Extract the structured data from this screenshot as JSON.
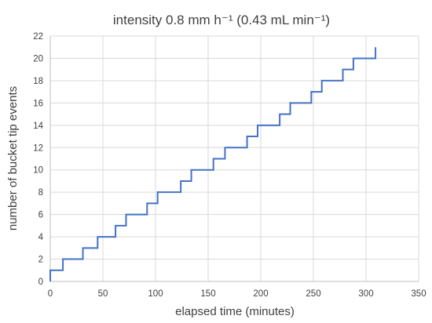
{
  "chart_data": {
    "type": "line",
    "title": "intensity 0.8 mm h⁻¹ (0.43 mL min⁻¹)",
    "xlabel": "elapsed time (minutes)",
    "ylabel": "number of bucket tip events",
    "xlim": [
      0,
      350
    ],
    "ylim": [
      0,
      22
    ],
    "xticks": [
      "0",
      "50",
      "100",
      "150",
      "200",
      "250",
      "300",
      "350"
    ],
    "yticks": [
      "0",
      "2",
      "4",
      "6",
      "8",
      "10",
      "12",
      "14",
      "16",
      "18",
      "20",
      "22"
    ],
    "grid": true,
    "line_style": "step",
    "series": [
      {
        "color": "#4472c4",
        "x": [
          0,
          0,
          12,
          31,
          45,
          62,
          72,
          92,
          102,
          124,
          134,
          155,
          166,
          187,
          197,
          218,
          228,
          248,
          258,
          278,
          288,
          309,
          309
        ],
        "y": [
          0,
          1,
          2,
          3,
          4,
          5,
          6,
          7,
          8,
          9,
          10,
          11,
          12,
          13,
          14,
          15,
          16,
          17,
          18,
          19,
          20,
          20,
          21
        ]
      }
    ]
  }
}
